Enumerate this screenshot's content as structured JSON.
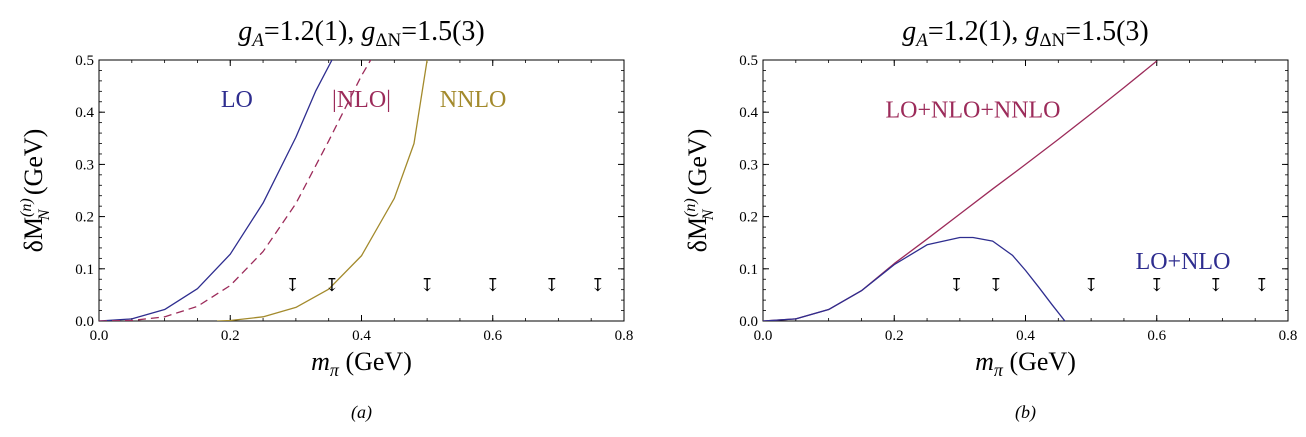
{
  "chart_data": [
    {
      "type": "line",
      "title": "g_A=1.2(1), g_ΔN=1.5(3)",
      "title_parts": {
        "g1": "g",
        "s1": "A",
        "v1": "=1.2(1), ",
        "g2": "g",
        "s2": "ΔN",
        "v2": "=1.5(3)"
      },
      "xlabel": "m_π (GeV)",
      "xlabel_parts": {
        "m": "m",
        "sub": "π",
        "unit": " (GeV)"
      },
      "ylabel": "δM_N^(n) (GeV)",
      "ylabel_parts": {
        "d": "δM",
        "sup": "(n)",
        "sub": "N",
        "unit": " (GeV)"
      },
      "caption": "(a)",
      "xlim": [
        0,
        0.8
      ],
      "ylim": [
        0,
        0.5
      ],
      "xticks": [
        0.0,
        0.2,
        0.4,
        0.6,
        0.8
      ],
      "xtick_labels": [
        "0.0",
        "0.2",
        "0.4",
        "0.6",
        "0.8"
      ],
      "yticks": [
        0.0,
        0.1,
        0.2,
        0.3,
        0.4,
        0.5
      ],
      "ytick_labels": [
        "0.0",
        "0.1",
        "0.2",
        "0.3",
        "0.4",
        "0.5"
      ],
      "arrows_x": [
        0.295,
        0.355,
        0.5,
        0.6,
        0.69,
        0.76
      ],
      "arrow_glyph": "↧",
      "series": [
        {
          "name": "LO",
          "color": "#2e2d8f",
          "dash": "solid",
          "x": [
            0.0,
            0.05,
            0.1,
            0.15,
            0.2,
            0.25,
            0.3,
            0.33,
            0.355
          ],
          "y": [
            0.0,
            0.004,
            0.022,
            0.062,
            0.128,
            0.226,
            0.352,
            0.44,
            0.5
          ]
        },
        {
          "name": "|NLO|",
          "color": "#9c2b5a",
          "dash": "dashed",
          "x": [
            0.0,
            0.05,
            0.1,
            0.15,
            0.2,
            0.25,
            0.3,
            0.35,
            0.4,
            0.414
          ],
          "y": [
            0.0,
            0.001,
            0.008,
            0.028,
            0.068,
            0.133,
            0.225,
            0.345,
            0.47,
            0.5
          ]
        },
        {
          "name": "NNLO",
          "color": "#a38a2c",
          "dash": "solid",
          "x": [
            0.18,
            0.2,
            0.25,
            0.3,
            0.35,
            0.4,
            0.45,
            0.48,
            0.5
          ],
          "y": [
            0.0,
            0.001,
            0.008,
            0.026,
            0.061,
            0.125,
            0.235,
            0.34,
            0.5
          ]
        }
      ],
      "series_label_pos": [
        {
          "x": 0.21,
          "y": 0.41
        },
        {
          "x": 0.4,
          "y": 0.41
        },
        {
          "x": 0.57,
          "y": 0.41
        }
      ]
    },
    {
      "type": "line",
      "title": "g_A=1.2(1), g_ΔN=1.5(3)",
      "title_parts": {
        "g1": "g",
        "s1": "A",
        "v1": "=1.2(1), ",
        "g2": "g",
        "s2": "ΔN",
        "v2": "=1.5(3)"
      },
      "xlabel": "m_π (GeV)",
      "xlabel_parts": {
        "m": "m",
        "sub": "π",
        "unit": " (GeV)"
      },
      "ylabel": "δM_N^(n) (GeV)",
      "ylabel_parts": {
        "d": "δM",
        "sup": "(n)",
        "sub": "N",
        "unit": " (GeV)"
      },
      "caption": "(b)",
      "xlim": [
        0,
        0.8
      ],
      "ylim": [
        0,
        0.5
      ],
      "xticks": [
        0.0,
        0.2,
        0.4,
        0.6,
        0.8
      ],
      "xtick_labels": [
        "0.0",
        "0.2",
        "0.4",
        "0.6",
        "0.8"
      ],
      "yticks": [
        0.0,
        0.1,
        0.2,
        0.3,
        0.4,
        0.5
      ],
      "ytick_labels": [
        "0.0",
        "0.1",
        "0.2",
        "0.3",
        "0.4",
        "0.5"
      ],
      "arrows_x": [
        0.295,
        0.355,
        0.5,
        0.6,
        0.69,
        0.76
      ],
      "arrow_glyph": "↧",
      "series": [
        {
          "name": "LO+NLO+NNLO",
          "color": "#9c2b5a",
          "dash": "solid",
          "x": [
            0.0,
            0.05,
            0.1,
            0.15,
            0.2,
            0.25,
            0.3,
            0.35,
            0.4,
            0.45,
            0.5,
            0.55,
            0.6
          ],
          "y": [
            0.0,
            0.004,
            0.022,
            0.058,
            0.11,
            0.157,
            0.205,
            0.253,
            0.3,
            0.348,
            0.397,
            0.447,
            0.498
          ]
        },
        {
          "name": "LO+NLO",
          "color": "#2e2d8f",
          "dash": "solid",
          "x": [
            0.0,
            0.05,
            0.1,
            0.15,
            0.2,
            0.25,
            0.3,
            0.32,
            0.35,
            0.38,
            0.4,
            0.42,
            0.44,
            0.46
          ],
          "y": [
            0.0,
            0.004,
            0.022,
            0.058,
            0.108,
            0.146,
            0.16,
            0.16,
            0.153,
            0.126,
            0.097,
            0.065,
            0.032,
            0.0
          ]
        }
      ],
      "series_label_pos": [
        {
          "x": 0.32,
          "y": 0.39
        },
        {
          "x": 0.64,
          "y": 0.1
        }
      ]
    }
  ]
}
